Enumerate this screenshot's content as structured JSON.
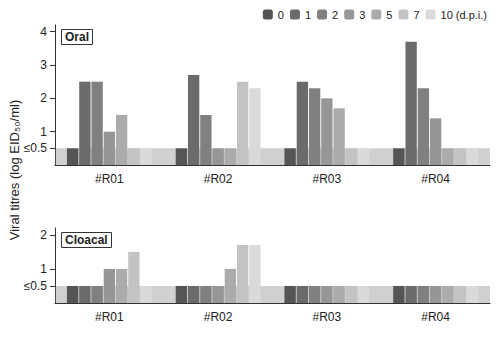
{
  "chart_data": [
    {
      "type": "bar",
      "title": "Oral",
      "ylabel": "Viral titres (log EID₅₀/ml)",
      "legend": "upper right",
      "categories": [
        "#R01",
        "#R02",
        "#R03",
        "#R04"
      ],
      "series": [
        {
          "name": "0",
          "color": "#555555",
          "values": [
            0.5,
            0.5,
            0.5,
            0.5
          ]
        },
        {
          "name": "1",
          "color": "#6b6b6b",
          "values": [
            2.5,
            2.7,
            2.5,
            3.7
          ]
        },
        {
          "name": "2",
          "color": "#808080",
          "values": [
            2.5,
            1.5,
            2.3,
            2.3
          ]
        },
        {
          "name": "3",
          "color": "#969696",
          "values": [
            1.0,
            0.5,
            2.0,
            1.4
          ]
        },
        {
          "name": "5",
          "color": "#ababab",
          "values": [
            1.5,
            0.5,
            1.7,
            0.5
          ]
        },
        {
          "name": "7",
          "color": "#c3c3c3",
          "values": [
            0.5,
            2.5,
            0.5,
            0.5
          ]
        },
        {
          "name": "10 (d.p.i.)",
          "color": "#dadada",
          "values": [
            0.5,
            2.3,
            0.5,
            0.5
          ]
        }
      ],
      "ylim": [
        0,
        4.2
      ],
      "yticks": [
        {
          "value": 0.5,
          "label": "≤0.5"
        },
        1,
        2,
        3,
        4
      ],
      "grid": false
    },
    {
      "type": "bar",
      "title": "Cloacal",
      "categories": [
        "#R01",
        "#R02",
        "#R03",
        "#R04"
      ],
      "series": [
        {
          "name": "0",
          "color": "#555555",
          "values": [
            0.5,
            0.5,
            0.5,
            0.5
          ]
        },
        {
          "name": "1",
          "color": "#6b6b6b",
          "values": [
            0.5,
            0.5,
            0.5,
            0.5
          ]
        },
        {
          "name": "2",
          "color": "#808080",
          "values": [
            0.5,
            0.5,
            0.5,
            0.5
          ]
        },
        {
          "name": "3",
          "color": "#969696",
          "values": [
            1.0,
            0.5,
            0.5,
            0.5
          ]
        },
        {
          "name": "5",
          "color": "#ababab",
          "values": [
            1.0,
            1.0,
            0.5,
            0.5
          ]
        },
        {
          "name": "7",
          "color": "#c3c3c3",
          "values": [
            1.5,
            1.7,
            0.5,
            0.5
          ]
        },
        {
          "name": "10 (d.p.i.)",
          "color": "#dadada",
          "values": [
            0.5,
            1.7,
            0.5,
            0.5
          ]
        }
      ],
      "ylim": [
        0,
        2.2
      ],
      "yticks": [
        {
          "value": 0.5,
          "label": "≤0.5"
        },
        1,
        2
      ],
      "grid": false
    }
  ]
}
